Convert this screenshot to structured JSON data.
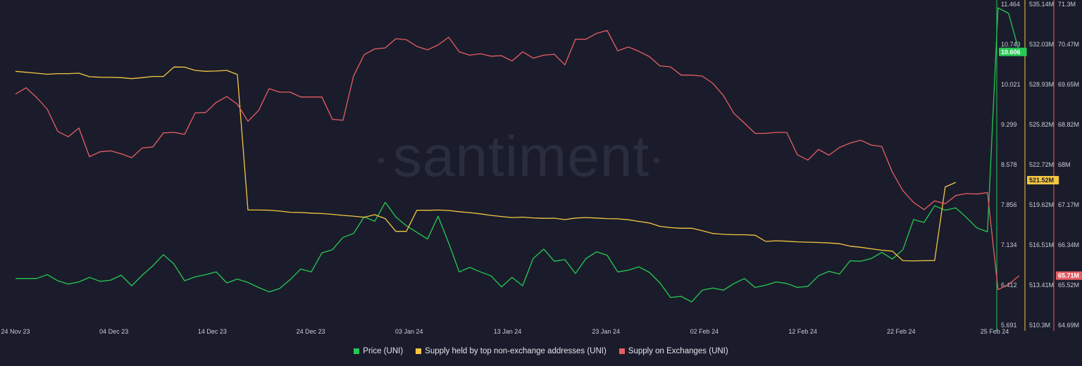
{
  "watermark": "santiment",
  "legend_labels": [
    "Price (UNI)",
    "Supply held by top non-exchange addresses (UNI)",
    "Supply on Exchanges (UNI)"
  ],
  "chart_data": {
    "type": "line",
    "title": "",
    "x": [
      "24 Nov 23",
      "04 Dec 23",
      "14 Dec 23",
      "24 Dec 23",
      "03 Jan 24",
      "13 Jan 24",
      "23 Jan 24",
      "02 Feb 24",
      "12 Feb 24",
      "22 Feb 24",
      "25 Feb 24"
    ],
    "x_range_days": [
      0,
      92
    ],
    "series": [
      {
        "name": "Price (UNI)",
        "color": "#26c953",
        "axis": "price",
        "values": [
          [
            0,
            6.53
          ],
          [
            2,
            6.53
          ],
          [
            3,
            6.6
          ],
          [
            4,
            6.49
          ],
          [
            5,
            6.43
          ],
          [
            6,
            6.47
          ],
          [
            7,
            6.55
          ],
          [
            8,
            6.48
          ],
          [
            9,
            6.5
          ],
          [
            10,
            6.59
          ],
          [
            11,
            6.4
          ],
          [
            12,
            6.59
          ],
          [
            13,
            6.76
          ],
          [
            14,
            6.96
          ],
          [
            15,
            6.79
          ],
          [
            16,
            6.49
          ],
          [
            17,
            6.56
          ],
          [
            18,
            6.6
          ],
          [
            19,
            6.65
          ],
          [
            20,
            6.45
          ],
          [
            21,
            6.52
          ],
          [
            22,
            6.46
          ],
          [
            23,
            6.37
          ],
          [
            24,
            6.29
          ],
          [
            25,
            6.35
          ],
          [
            26,
            6.51
          ],
          [
            27,
            6.7
          ],
          [
            28,
            6.65
          ],
          [
            29,
            6.99
          ],
          [
            30,
            7.05
          ],
          [
            31,
            7.27
          ],
          [
            32,
            7.34
          ],
          [
            33,
            7.64
          ],
          [
            34,
            7.56
          ],
          [
            35,
            7.9
          ],
          [
            36,
            7.64
          ],
          [
            37,
            7.48
          ],
          [
            38,
            7.36
          ],
          [
            39,
            7.24
          ],
          [
            40,
            7.65
          ],
          [
            41,
            7.17
          ],
          [
            42,
            6.65
          ],
          [
            43,
            6.73
          ],
          [
            44,
            6.65
          ],
          [
            45,
            6.58
          ],
          [
            46,
            6.38
          ],
          [
            47,
            6.55
          ],
          [
            48,
            6.4
          ],
          [
            49,
            6.89
          ],
          [
            50,
            7.06
          ],
          [
            51,
            6.84
          ],
          [
            52,
            6.87
          ],
          [
            53,
            6.62
          ],
          [
            54,
            6.89
          ],
          [
            55,
            7.01
          ],
          [
            56,
            6.95
          ],
          [
            57,
            6.65
          ],
          [
            58,
            6.68
          ],
          [
            59,
            6.74
          ],
          [
            60,
            6.64
          ],
          [
            61,
            6.45
          ],
          [
            62,
            6.19
          ],
          [
            63,
            6.21
          ],
          [
            64,
            6.11
          ],
          [
            65,
            6.32
          ],
          [
            66,
            6.36
          ],
          [
            67,
            6.32
          ],
          [
            68,
            6.44
          ],
          [
            69,
            6.53
          ],
          [
            70,
            6.37
          ],
          [
            71,
            6.41
          ],
          [
            72,
            6.47
          ],
          [
            73,
            6.44
          ],
          [
            74,
            6.37
          ],
          [
            75,
            6.39
          ],
          [
            76,
            6.58
          ],
          [
            77,
            6.66
          ],
          [
            78,
            6.61
          ],
          [
            79,
            6.85
          ],
          [
            80,
            6.84
          ],
          [
            81,
            6.89
          ],
          [
            82,
            7.0
          ],
          [
            83,
            6.88
          ],
          [
            84,
            7.05
          ],
          [
            85,
            7.59
          ],
          [
            86,
            7.54
          ],
          [
            87,
            7.84
          ],
          [
            88,
            7.76
          ],
          [
            89,
            7.8
          ],
          [
            90,
            7.63
          ],
          [
            91,
            7.44
          ],
          [
            92,
            7.37
          ],
          [
            93,
            11.4
          ],
          [
            94,
            11.3
          ],
          [
            95,
            10.61
          ]
        ]
      },
      {
        "name": "Supply held by top non-exchange addresses (UNI)",
        "color": "#f5c641",
        "axis": "top_supply",
        "values": [
          [
            0,
            529.95
          ],
          [
            2,
            529.8
          ],
          [
            3,
            529.72
          ],
          [
            4,
            529.77
          ],
          [
            5,
            529.77
          ],
          [
            6,
            529.8
          ],
          [
            7,
            529.53
          ],
          [
            8,
            529.49
          ],
          [
            9,
            529.48
          ],
          [
            10,
            529.46
          ],
          [
            11,
            529.38
          ],
          [
            12,
            529.46
          ],
          [
            13,
            529.55
          ],
          [
            14,
            529.55
          ],
          [
            15,
            530.28
          ],
          [
            16,
            530.27
          ],
          [
            17,
            530.02
          ],
          [
            18,
            529.95
          ],
          [
            19,
            529.97
          ],
          [
            20,
            530.02
          ],
          [
            21,
            529.7
          ],
          [
            22,
            519.21
          ],
          [
            23,
            519.21
          ],
          [
            24,
            519.2
          ],
          [
            25,
            519.13
          ],
          [
            26,
            519.04
          ],
          [
            27,
            519.02
          ],
          [
            28,
            518.97
          ],
          [
            29,
            518.94
          ],
          [
            30,
            518.88
          ],
          [
            31,
            518.8
          ],
          [
            32,
            518.74
          ],
          [
            33,
            518.65
          ],
          [
            34,
            518.85
          ],
          [
            35,
            518.55
          ],
          [
            36,
            517.56
          ],
          [
            37,
            517.56
          ],
          [
            38,
            519.2
          ],
          [
            39,
            519.19
          ],
          [
            40,
            519.21
          ],
          [
            41,
            519.18
          ],
          [
            42,
            519.08
          ],
          [
            43,
            519.01
          ],
          [
            44,
            518.92
          ],
          [
            45,
            518.8
          ],
          [
            46,
            518.71
          ],
          [
            47,
            518.63
          ],
          [
            48,
            518.66
          ],
          [
            49,
            518.6
          ],
          [
            50,
            518.57
          ],
          [
            51,
            518.58
          ],
          [
            52,
            518.47
          ],
          [
            53,
            518.59
          ],
          [
            54,
            518.63
          ],
          [
            55,
            518.59
          ],
          [
            56,
            518.55
          ],
          [
            57,
            518.53
          ],
          [
            58,
            518.46
          ],
          [
            59,
            518.33
          ],
          [
            60,
            518.21
          ],
          [
            61,
            517.95
          ],
          [
            62,
            517.85
          ],
          [
            63,
            517.8
          ],
          [
            64,
            517.8
          ],
          [
            65,
            517.61
          ],
          [
            66,
            517.4
          ],
          [
            67,
            517.33
          ],
          [
            68,
            517.3
          ],
          [
            69,
            517.3
          ],
          [
            70,
            517.26
          ],
          [
            71,
            516.78
          ],
          [
            72,
            516.83
          ],
          [
            73,
            516.8
          ],
          [
            74,
            516.75
          ],
          [
            75,
            516.72
          ],
          [
            76,
            516.7
          ],
          [
            77,
            516.66
          ],
          [
            78,
            516.6
          ],
          [
            79,
            516.41
          ],
          [
            80,
            516.33
          ],
          [
            81,
            516.21
          ],
          [
            82,
            516.1
          ],
          [
            83,
            516.03
          ],
          [
            84,
            515.29
          ],
          [
            85,
            515.28
          ],
          [
            86,
            515.29
          ],
          [
            87,
            515.3
          ],
          [
            88,
            521.0
          ],
          [
            89,
            521.35
          ]
        ]
      },
      {
        "name": "Supply on Exchanges (UNI)",
        "color": "#e85d64",
        "axis": "exchange_supply",
        "values": [
          [
            0,
            69.45
          ],
          [
            1,
            69.58
          ],
          [
            2,
            69.38
          ],
          [
            3,
            69.14
          ],
          [
            4,
            68.68
          ],
          [
            5,
            68.57
          ],
          [
            6,
            68.75
          ],
          [
            7,
            68.16
          ],
          [
            8,
            68.26
          ],
          [
            9,
            68.28
          ],
          [
            10,
            68.22
          ],
          [
            11,
            68.14
          ],
          [
            12,
            68.34
          ],
          [
            13,
            68.36
          ],
          [
            14,
            68.65
          ],
          [
            15,
            68.66
          ],
          [
            16,
            68.62
          ],
          [
            17,
            69.06
          ],
          [
            18,
            69.07
          ],
          [
            19,
            69.28
          ],
          [
            20,
            69.4
          ],
          [
            21,
            69.24
          ],
          [
            22,
            68.89
          ],
          [
            23,
            69.11
          ],
          [
            24,
            69.56
          ],
          [
            25,
            69.49
          ],
          [
            26,
            69.49
          ],
          [
            27,
            69.39
          ],
          [
            28,
            69.39
          ],
          [
            29,
            69.39
          ],
          [
            30,
            68.93
          ],
          [
            31,
            68.91
          ],
          [
            32,
            69.82
          ],
          [
            33,
            70.26
          ],
          [
            34,
            70.38
          ],
          [
            35,
            70.4
          ],
          [
            36,
            70.59
          ],
          [
            37,
            70.57
          ],
          [
            38,
            70.43
          ],
          [
            39,
            70.36
          ],
          [
            40,
            70.46
          ],
          [
            41,
            70.62
          ],
          [
            42,
            70.32
          ],
          [
            43,
            70.25
          ],
          [
            44,
            70.28
          ],
          [
            45,
            70.23
          ],
          [
            46,
            70.24
          ],
          [
            47,
            70.13
          ],
          [
            48,
            70.32
          ],
          [
            49,
            70.19
          ],
          [
            50,
            70.25
          ],
          [
            51,
            70.27
          ],
          [
            52,
            70.05
          ],
          [
            53,
            70.58
          ],
          [
            54,
            70.58
          ],
          [
            55,
            70.7
          ],
          [
            56,
            70.76
          ],
          [
            57,
            70.34
          ],
          [
            58,
            70.42
          ],
          [
            59,
            70.33
          ],
          [
            60,
            70.22
          ],
          [
            61,
            70.03
          ],
          [
            62,
            70.01
          ],
          [
            63,
            69.84
          ],
          [
            64,
            69.84
          ],
          [
            65,
            69.82
          ],
          [
            66,
            69.67
          ],
          [
            67,
            69.42
          ],
          [
            68,
            69.05
          ],
          [
            69,
            68.85
          ],
          [
            70,
            68.64
          ],
          [
            71,
            68.64
          ],
          [
            72,
            68.66
          ],
          [
            73,
            68.66
          ],
          [
            74,
            68.2
          ],
          [
            75,
            68.09
          ],
          [
            76,
            68.31
          ],
          [
            77,
            68.19
          ],
          [
            78,
            68.35
          ],
          [
            79,
            68.44
          ],
          [
            80,
            68.5
          ],
          [
            81,
            68.4
          ],
          [
            82,
            68.37
          ],
          [
            83,
            67.84
          ],
          [
            84,
            67.46
          ],
          [
            85,
            67.22
          ],
          [
            86,
            67.07
          ],
          [
            87,
            67.25
          ],
          [
            88,
            67.19
          ],
          [
            89,
            67.36
          ],
          [
            90,
            67.4
          ],
          [
            91,
            67.39
          ],
          [
            92,
            67.42
          ],
          [
            93,
            65.42
          ],
          [
            94,
            65.53
          ],
          [
            95,
            65.71
          ]
        ]
      }
    ],
    "axes": {
      "price": {
        "color": "#26c953",
        "ylim": [
          5.691,
          11.464
        ],
        "ticks": [
          "11.464",
          "10.743",
          "10.021",
          "9.299",
          "8.578",
          "7.856",
          "7.134",
          "6.412",
          "5.691"
        ],
        "current_label": "10.606",
        "current_value": 10.606
      },
      "top_supply": {
        "color": "#f5c641",
        "ylim": [
          510.3,
          535.14
        ],
        "ticks": [
          "535.14M",
          "532.03M",
          "528.93M",
          "525.82M",
          "522.72M",
          "519.62M",
          "516.51M",
          "513.41M",
          "510.3M"
        ],
        "current_label": "521.52M",
        "current_value": 521.52
      },
      "exchange_supply": {
        "color": "#e85d64",
        "ylim": [
          64.69,
          71.3
        ],
        "ticks": [
          "71.3M",
          "70.47M",
          "69.65M",
          "68.82M",
          "68M",
          "67.17M",
          "66.34M",
          "65.52M",
          "64.69M"
        ],
        "current_label": "65.71M",
        "current_value": 65.71
      }
    },
    "grid": false,
    "legend_position": "bottom-center"
  }
}
